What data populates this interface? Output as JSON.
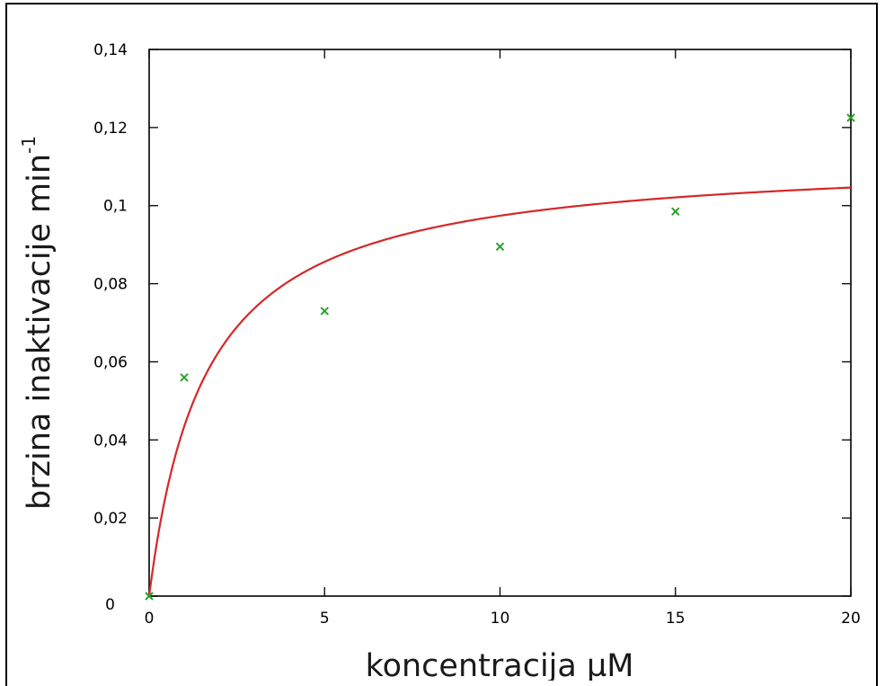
{
  "chart_data": {
    "type": "scatter",
    "xlabel": "koncentracija µM",
    "ylabel": "brzina inaktivacije min",
    "ylabel_superscript": "-1",
    "xlim": [
      0,
      20
    ],
    "ylim": [
      0,
      0.14
    ],
    "x_ticks": [
      0,
      5,
      10,
      15,
      20
    ],
    "x_tick_labels": [
      "0",
      "5",
      "10",
      "15",
      "20"
    ],
    "y_ticks": [
      0,
      0.02,
      0.04,
      0.06,
      0.08,
      0.1,
      0.12,
      0.14
    ],
    "y_tick_labels": [
      "0",
      "0,02",
      "0,04",
      "0,06",
      "0,08",
      "0,1",
      "0,12",
      "0,14"
    ],
    "grid": false,
    "series": [
      {
        "kind": "points",
        "marker": "x",
        "color": "#2ca02c",
        "x": [
          0,
          1,
          5,
          10,
          15,
          20
        ],
        "y": [
          0.0,
          0.056,
          0.073,
          0.0895,
          0.0985,
          0.1225
        ]
      },
      {
        "kind": "fit-curve",
        "color": "#d62728",
        "model": "Vmax*x/(K+x)",
        "params": {
          "Vmax": 0.113,
          "K": 1.6
        }
      }
    ]
  }
}
